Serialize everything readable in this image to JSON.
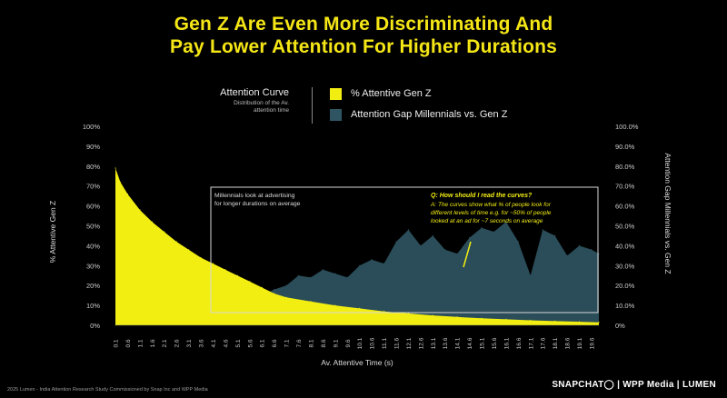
{
  "title_line1": "Gen Z Are Even More Discriminating And",
  "title_line2": "Pay Lower Attention For Higher Durations",
  "legend": {
    "curve_title": "Attention Curve",
    "curve_subtitle_1": "Distribution of the Av.",
    "curve_subtitle_2": "attention time",
    "series1_label": "% Attentive Gen Z",
    "series2_label": "Attention Gap Millennials vs. Gen Z"
  },
  "colors": {
    "title": "#f5e616",
    "genz": "#f2ee12",
    "gap": "#2f5563",
    "box": "#d8d8d8"
  },
  "annotations": {
    "millennials_1": "Millennials look at advertising",
    "millennials_2": "for longer durations on average",
    "qa_q": "Q: How should I read the curves?",
    "qa_a1": "A: The curves show what % of people look for",
    "qa_a2": "different levels of time e.g. for ~50% of people",
    "qa_a3": "looked at an ad for ~7 seconds on average"
  },
  "footer": "2025 Lumen - India Attention Research Study Commissioned by Snap Inc and WPP Media",
  "brand": "SNAPCHAT◯ | WPP Media | LUMEN",
  "chart_data": {
    "type": "area",
    "xlabel": "Av. Attentive Time (s)",
    "ylabel_left": "% Attentive Gen Z",
    "ylabel_right": "Attention Gap Millennials vs. Gen Z",
    "y_ticks_left": [
      "0%",
      "10%",
      "20%",
      "30%",
      "40%",
      "50%",
      "60%",
      "70%",
      "80%",
      "90%",
      "100%"
    ],
    "y_ticks_right": [
      "0%",
      "10.0%",
      "20.0%",
      "30.0%",
      "40.0%",
      "50.0%",
      "60.0%",
      "70.0%",
      "80.0%",
      "90.0%",
      "100.0%"
    ],
    "x_ticks": [
      "0.1",
      "0.6",
      "1.1",
      "1.6",
      "2.1",
      "2.6",
      "3.1",
      "3.6",
      "4.1",
      "4.6",
      "5.1",
      "5.6",
      "6.1",
      "6.6",
      "7.1",
      "7.6",
      "8.1",
      "8.6",
      "9.1",
      "9.6",
      "10.1",
      "10.6",
      "11.1",
      "11.6",
      "12.1",
      "12.6",
      "13.1",
      "13.6",
      "14.1",
      "14.6",
      "15.1",
      "15.6",
      "16.1",
      "16.6",
      "17.1",
      "17.6",
      "18.1",
      "18.6",
      "19.1",
      "19.6"
    ],
    "ylim": [
      0,
      100
    ],
    "series": [
      {
        "name": "% Attentive Gen Z",
        "x": [
          0.1,
          0.3,
          0.6,
          1.1,
          1.6,
          2.1,
          2.6,
          3.1,
          3.6,
          4.1,
          4.6,
          5.1,
          5.6,
          6.1,
          6.6,
          7.1,
          8.1,
          9.1,
          10.1,
          11.1,
          12.1,
          13.1,
          14.1,
          15.1,
          16.1,
          17.1,
          18.1,
          19.1,
          19.9
        ],
        "values": [
          79,
          72,
          66,
          58,
          52,
          47,
          42,
          38,
          34,
          31,
          28,
          25,
          22,
          19,
          16,
          14,
          12,
          10,
          8.5,
          7,
          6,
          5,
          4.2,
          3.5,
          3,
          2.5,
          2.1,
          1.8,
          1.5
        ]
      },
      {
        "name": "Attention Gap Millennials vs. Gen Z",
        "x": [
          0.1,
          0.6,
          1.1,
          1.6,
          2.1,
          2.6,
          3.1,
          3.6,
          4.1,
          4.6,
          5.1,
          5.6,
          6.1,
          6.6,
          7.1,
          7.6,
          8.1,
          8.6,
          9.1,
          9.6,
          10.1,
          10.6,
          11.1,
          11.6,
          12.1,
          12.6,
          13.1,
          13.6,
          14.1,
          14.6,
          15.1,
          15.6,
          16.1,
          16.6,
          17.1,
          17.6,
          18.1,
          18.6,
          19.1,
          19.6,
          19.9
        ],
        "values": [
          0,
          1,
          2,
          3,
          4,
          5,
          6,
          7,
          10,
          5,
          8,
          12,
          15,
          18,
          20,
          25,
          24,
          28,
          26,
          24,
          30,
          33,
          31,
          42,
          48,
          40,
          45,
          38,
          36,
          44,
          49,
          47,
          52,
          42,
          25,
          48,
          45,
          35,
          40,
          38,
          36
        ]
      }
    ]
  }
}
